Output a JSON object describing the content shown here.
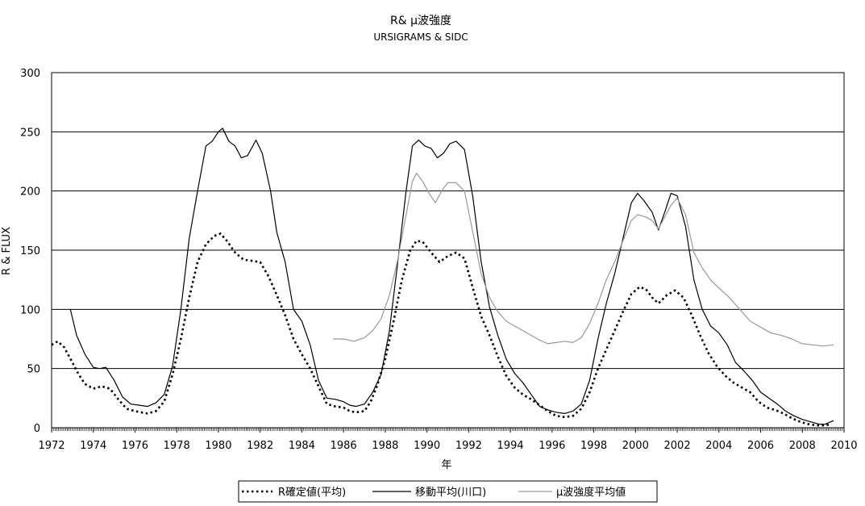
{
  "chart_data": {
    "type": "line",
    "title": "R& μ波強度",
    "subtitle": "URSIGRAMS & SIDC",
    "xlabel": "年",
    "ylabel": "R & FLUX",
    "xlim": [
      1972,
      2010
    ],
    "ylim": [
      0,
      300
    ],
    "y_ticks": [
      0,
      50,
      100,
      150,
      200,
      250,
      300
    ],
    "x_ticks": [
      1972,
      1974,
      1976,
      1978,
      1980,
      1982,
      1984,
      1986,
      1988,
      1990,
      1992,
      1994,
      1996,
      1998,
      2000,
      2002,
      2004,
      2006,
      2008,
      2010
    ],
    "grid": "horizontal",
    "legend_position": "bottom",
    "series": [
      {
        "name": "R確定値(平均)",
        "style": "dotted",
        "color": "#000000",
        "points": [
          [
            1972.0,
            70
          ],
          [
            1972.3,
            73
          ],
          [
            1972.6,
            68
          ],
          [
            1973.0,
            55
          ],
          [
            1973.3,
            45
          ],
          [
            1973.6,
            37
          ],
          [
            1974.0,
            33
          ],
          [
            1974.4,
            35
          ],
          [
            1974.8,
            33
          ],
          [
            1975.2,
            24
          ],
          [
            1975.6,
            16
          ],
          [
            1976.0,
            14
          ],
          [
            1976.3,
            13
          ],
          [
            1976.6,
            12
          ],
          [
            1977.0,
            14
          ],
          [
            1977.4,
            22
          ],
          [
            1977.8,
            45
          ],
          [
            1978.2,
            75
          ],
          [
            1978.6,
            110
          ],
          [
            1979.0,
            140
          ],
          [
            1979.4,
            155
          ],
          [
            1979.8,
            162
          ],
          [
            1980.1,
            164
          ],
          [
            1980.4,
            158
          ],
          [
            1980.8,
            148
          ],
          [
            1981.2,
            142
          ],
          [
            1981.6,
            141
          ],
          [
            1982.0,
            140
          ],
          [
            1982.4,
            128
          ],
          [
            1982.8,
            112
          ],
          [
            1983.2,
            95
          ],
          [
            1983.6,
            75
          ],
          [
            1984.0,
            62
          ],
          [
            1984.4,
            50
          ],
          [
            1984.8,
            35
          ],
          [
            1985.2,
            20
          ],
          [
            1985.6,
            18
          ],
          [
            1986.0,
            17
          ],
          [
            1986.3,
            14
          ],
          [
            1986.6,
            13
          ],
          [
            1987.0,
            14
          ],
          [
            1987.3,
            22
          ],
          [
            1987.6,
            35
          ],
          [
            1988.0,
            58
          ],
          [
            1988.4,
            90
          ],
          [
            1988.8,
            125
          ],
          [
            1989.2,
            150
          ],
          [
            1989.5,
            158
          ],
          [
            1989.8,
            157
          ],
          [
            1990.2,
            148
          ],
          [
            1990.6,
            140
          ],
          [
            1991.0,
            145
          ],
          [
            1991.4,
            148
          ],
          [
            1991.8,
            143
          ],
          [
            1992.2,
            118
          ],
          [
            1992.6,
            94
          ],
          [
            1993.0,
            78
          ],
          [
            1993.4,
            60
          ],
          [
            1993.8,
            44
          ],
          [
            1994.2,
            34
          ],
          [
            1994.6,
            28
          ],
          [
            1995.0,
            24
          ],
          [
            1995.4,
            19
          ],
          [
            1995.8,
            14
          ],
          [
            1996.2,
            10
          ],
          [
            1996.6,
            9
          ],
          [
            1997.0,
            10
          ],
          [
            1997.4,
            16
          ],
          [
            1997.8,
            30
          ],
          [
            1998.2,
            50
          ],
          [
            1998.6,
            66
          ],
          [
            1999.0,
            82
          ],
          [
            1999.4,
            98
          ],
          [
            1999.8,
            113
          ],
          [
            2000.2,
            119
          ],
          [
            2000.5,
            117
          ],
          [
            2000.8,
            110
          ],
          [
            2001.1,
            105
          ],
          [
            2001.5,
            112
          ],
          [
            2001.9,
            116
          ],
          [
            2002.3,
            110
          ],
          [
            2002.7,
            95
          ],
          [
            2003.1,
            78
          ],
          [
            2003.5,
            63
          ],
          [
            2003.9,
            52
          ],
          [
            2004.3,
            44
          ],
          [
            2004.7,
            38
          ],
          [
            2005.1,
            34
          ],
          [
            2005.5,
            30
          ],
          [
            2005.9,
            22
          ],
          [
            2006.3,
            17
          ],
          [
            2006.7,
            15
          ],
          [
            2007.1,
            12
          ],
          [
            2007.5,
            8
          ],
          [
            2007.9,
            5
          ],
          [
            2008.3,
            3
          ],
          [
            2008.7,
            2
          ],
          [
            2009.1,
            2
          ],
          [
            2009.4,
            3
          ]
        ]
      },
      {
        "name": "移動平均(川口)",
        "style": "solid",
        "color": "#000000",
        "points": [
          [
            1972.9,
            100
          ],
          [
            1973.2,
            78
          ],
          [
            1973.6,
            62
          ],
          [
            1974.0,
            51
          ],
          [
            1974.3,
            50
          ],
          [
            1974.6,
            51
          ],
          [
            1975.0,
            40
          ],
          [
            1975.4,
            26
          ],
          [
            1975.8,
            20
          ],
          [
            1976.2,
            19
          ],
          [
            1976.6,
            18
          ],
          [
            1977.0,
            21
          ],
          [
            1977.4,
            28
          ],
          [
            1977.8,
            52
          ],
          [
            1978.2,
            100
          ],
          [
            1978.6,
            160
          ],
          [
            1979.0,
            200
          ],
          [
            1979.4,
            238
          ],
          [
            1979.7,
            242
          ],
          [
            1980.0,
            250
          ],
          [
            1980.2,
            253
          ],
          [
            1980.5,
            242
          ],
          [
            1980.8,
            238
          ],
          [
            1981.1,
            228
          ],
          [
            1981.4,
            230
          ],
          [
            1981.8,
            243
          ],
          [
            1982.1,
            232
          ],
          [
            1982.5,
            200
          ],
          [
            1982.8,
            165
          ],
          [
            1983.2,
            140
          ],
          [
            1983.6,
            100
          ],
          [
            1984.0,
            90
          ],
          [
            1984.4,
            70
          ],
          [
            1984.8,
            40
          ],
          [
            1985.2,
            25
          ],
          [
            1985.6,
            24
          ],
          [
            1986.0,
            22
          ],
          [
            1986.3,
            19
          ],
          [
            1986.6,
            18
          ],
          [
            1987.0,
            20
          ],
          [
            1987.4,
            30
          ],
          [
            1987.8,
            45
          ],
          [
            1988.2,
            82
          ],
          [
            1988.6,
            140
          ],
          [
            1989.0,
            200
          ],
          [
            1989.3,
            238
          ],
          [
            1989.6,
            243
          ],
          [
            1989.9,
            238
          ],
          [
            1990.2,
            236
          ],
          [
            1990.5,
            228
          ],
          [
            1990.8,
            232
          ],
          [
            1991.1,
            240
          ],
          [
            1991.4,
            242
          ],
          [
            1991.8,
            235
          ],
          [
            1992.2,
            195
          ],
          [
            1992.6,
            140
          ],
          [
            1993.0,
            102
          ],
          [
            1993.4,
            78
          ],
          [
            1993.8,
            58
          ],
          [
            1994.2,
            46
          ],
          [
            1994.6,
            38
          ],
          [
            1995.0,
            28
          ],
          [
            1995.4,
            18
          ],
          [
            1995.8,
            15
          ],
          [
            1996.2,
            13
          ],
          [
            1996.6,
            12
          ],
          [
            1997.0,
            14
          ],
          [
            1997.4,
            20
          ],
          [
            1997.8,
            40
          ],
          [
            1998.2,
            75
          ],
          [
            1998.6,
            105
          ],
          [
            1999.0,
            130
          ],
          [
            1999.4,
            160
          ],
          [
            1999.8,
            190
          ],
          [
            2000.1,
            198
          ],
          [
            2000.4,
            192
          ],
          [
            2000.8,
            182
          ],
          [
            2001.1,
            167
          ],
          [
            2001.4,
            182
          ],
          [
            2001.7,
            198
          ],
          [
            2002.0,
            196
          ],
          [
            2002.4,
            170
          ],
          [
            2002.8,
            125
          ],
          [
            2003.2,
            100
          ],
          [
            2003.6,
            86
          ],
          [
            2004.0,
            80
          ],
          [
            2004.4,
            70
          ],
          [
            2004.8,
            55
          ],
          [
            2005.2,
            48
          ],
          [
            2005.6,
            40
          ],
          [
            2006.0,
            30
          ],
          [
            2006.4,
            25
          ],
          [
            2006.8,
            20
          ],
          [
            2007.2,
            14
          ],
          [
            2007.6,
            10
          ],
          [
            2008.0,
            7
          ],
          [
            2008.4,
            5
          ],
          [
            2008.8,
            3
          ],
          [
            2009.1,
            3
          ],
          [
            2009.5,
            6
          ]
        ]
      },
      {
        "name": "μ波強度平均値",
        "style": "solid",
        "color": "#999999",
        "points": [
          [
            1985.5,
            75
          ],
          [
            1986.0,
            75
          ],
          [
            1986.5,
            73
          ],
          [
            1987.0,
            76
          ],
          [
            1987.4,
            82
          ],
          [
            1987.8,
            92
          ],
          [
            1988.2,
            112
          ],
          [
            1988.6,
            142
          ],
          [
            1989.0,
            180
          ],
          [
            1989.3,
            208
          ],
          [
            1989.5,
            215
          ],
          [
            1989.8,
            208
          ],
          [
            1990.1,
            198
          ],
          [
            1990.4,
            190
          ],
          [
            1990.7,
            200
          ],
          [
            1991.0,
            207
          ],
          [
            1991.4,
            207
          ],
          [
            1991.8,
            200
          ],
          [
            1992.2,
            165
          ],
          [
            1992.6,
            130
          ],
          [
            1993.0,
            110
          ],
          [
            1993.4,
            98
          ],
          [
            1993.8,
            90
          ],
          [
            1994.2,
            86
          ],
          [
            1994.6,
            82
          ],
          [
            1995.0,
            78
          ],
          [
            1995.4,
            74
          ],
          [
            1995.8,
            71
          ],
          [
            1996.2,
            72
          ],
          [
            1996.6,
            73
          ],
          [
            1997.0,
            72
          ],
          [
            1997.4,
            76
          ],
          [
            1997.8,
            88
          ],
          [
            1998.2,
            105
          ],
          [
            1998.6,
            125
          ],
          [
            1999.0,
            140
          ],
          [
            1999.4,
            158
          ],
          [
            1999.8,
            175
          ],
          [
            2000.1,
            180
          ],
          [
            2000.5,
            178
          ],
          [
            2000.8,
            175
          ],
          [
            2001.1,
            168
          ],
          [
            2001.4,
            178
          ],
          [
            2001.7,
            188
          ],
          [
            2002.0,
            194
          ],
          [
            2002.4,
            180
          ],
          [
            2002.8,
            148
          ],
          [
            2003.2,
            135
          ],
          [
            2003.6,
            125
          ],
          [
            2004.0,
            118
          ],
          [
            2004.5,
            110
          ],
          [
            2005.0,
            100
          ],
          [
            2005.5,
            90
          ],
          [
            2006.0,
            85
          ],
          [
            2006.5,
            80
          ],
          [
            2007.0,
            78
          ],
          [
            2007.5,
            75
          ],
          [
            2008.0,
            71
          ],
          [
            2008.5,
            70
          ],
          [
            2009.0,
            69
          ],
          [
            2009.5,
            70
          ]
        ]
      }
    ]
  }
}
